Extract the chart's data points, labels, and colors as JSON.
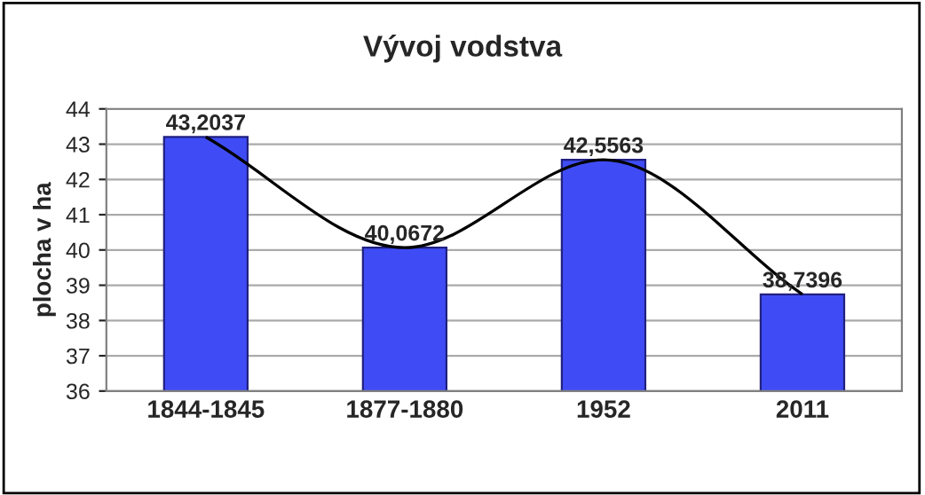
{
  "chart_data": {
    "type": "bar",
    "title": "Vývoj vodstva",
    "ylabel": "plocha v ha",
    "categories": [
      "1844-1845",
      "1877-1880",
      "1952",
      "2011"
    ],
    "series": [
      {
        "color": "#3f4cf5",
        "values": [
          43.2037,
          40.0672,
          42.5563,
          38.7396
        ],
        "value_labels": [
          "43,2037",
          "40,0672",
          "42,5563",
          "38,7396"
        ]
      },
      {
        "type": "line",
        "color": "#000000",
        "values": [
          43.2037,
          40.0672,
          42.5563,
          38.7396
        ]
      }
    ],
    "ylim": [
      36,
      44
    ],
    "yticks": [
      36,
      37,
      38,
      39,
      40,
      41,
      42,
      43,
      44
    ],
    "grid": "y",
    "legend": false
  }
}
